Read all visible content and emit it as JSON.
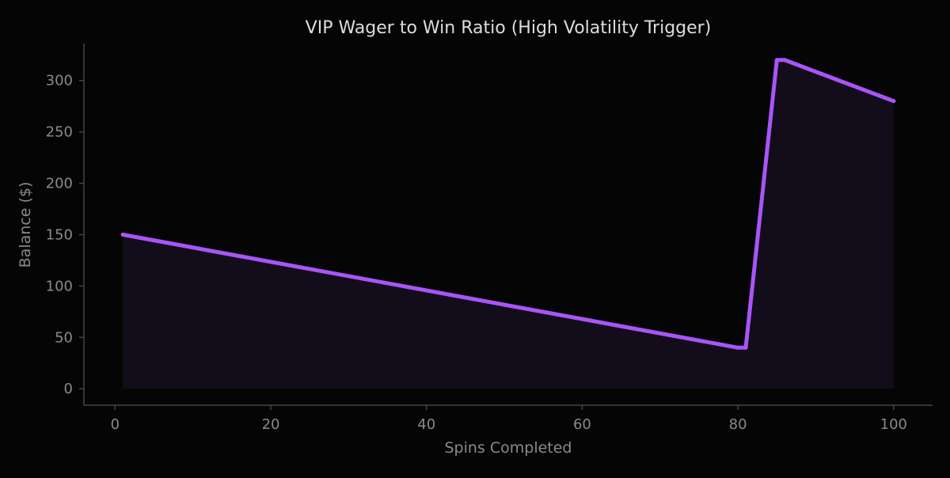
{
  "chart_data": {
    "type": "area",
    "title": "VIP Wager to Win Ratio (High Volatility Trigger)",
    "xlabel": "Spins Completed",
    "ylabel": "Balance ($)",
    "xlim": [
      -4,
      105
    ],
    "ylim": [
      -16,
      336
    ],
    "xticks": [
      0,
      20,
      40,
      60,
      80,
      100
    ],
    "yticks": [
      0,
      50,
      100,
      150,
      200,
      250,
      300
    ],
    "grid": false,
    "series": [
      {
        "name": "Balance",
        "color": "#a855f7",
        "fill_color": "#a855f7",
        "points": [
          [
            1,
            150
          ],
          [
            80,
            40
          ],
          [
            81,
            40
          ],
          [
            85,
            320
          ],
          [
            86,
            320
          ],
          [
            100,
            280
          ]
        ]
      }
    ],
    "colors": {
      "background": "#050505",
      "axis": "#444444",
      "tick_text": "#8a8a8a",
      "title_text": "#dddddd"
    }
  }
}
